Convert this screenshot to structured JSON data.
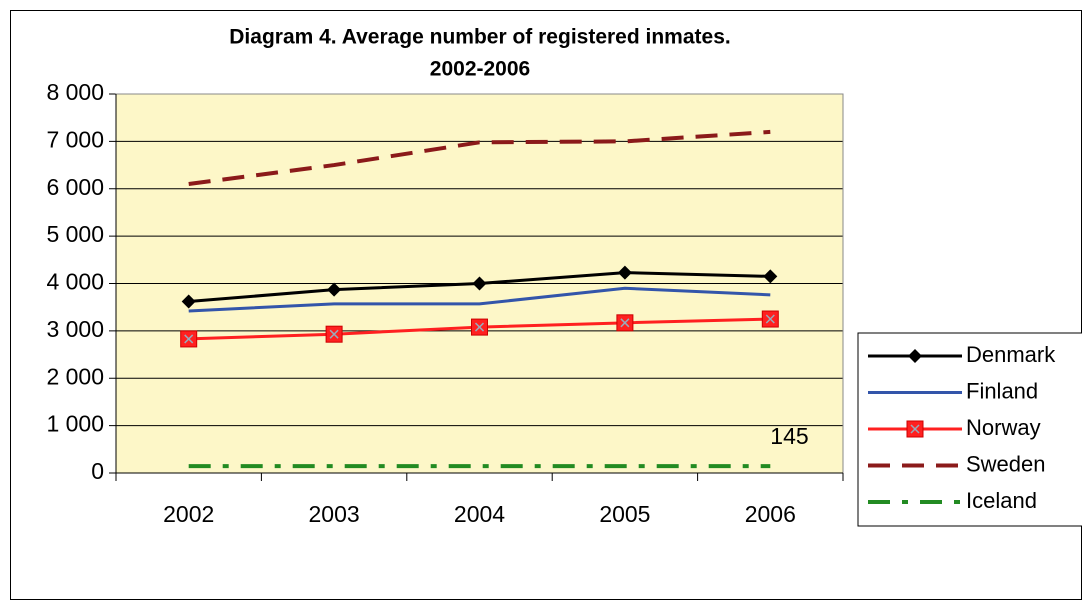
{
  "chart_data": {
    "type": "line",
    "title": [
      "Diagram 4. Average number of registered inmates.",
      "2002-2006"
    ],
    "categories": [
      "2002",
      "2003",
      "2004",
      "2005",
      "2006"
    ],
    "series": [
      {
        "name": "Denmark",
        "color": "#000000",
        "marker": "diamond",
        "dash": "solid",
        "values": [
          3620,
          3870,
          4000,
          4230,
          4150
        ]
      },
      {
        "name": "Finland",
        "color": "#3355aa",
        "marker": "none",
        "dash": "solid",
        "values": [
          3420,
          3570,
          3570,
          3900,
          3760
        ]
      },
      {
        "name": "Norway",
        "color": "#ff2020",
        "marker": "square",
        "dash": "solid",
        "values": [
          2830,
          2930,
          3080,
          3170,
          3250
        ]
      },
      {
        "name": "Sweden",
        "color": "#8b1a1a",
        "marker": "none",
        "dash": "dash",
        "values": [
          6100,
          6500,
          6980,
          7000,
          7200
        ]
      },
      {
        "name": "Iceland",
        "color": "#228b22",
        "marker": "none",
        "dash": "dashdot",
        "values": [
          145,
          145,
          145,
          145,
          145
        ]
      }
    ],
    "ylim": [
      0,
      8000
    ],
    "yticks": [
      0,
      {
        "value": 1000,
        "label": "1 000"
      },
      {
        "value": 2000,
        "label": "2 000"
      },
      {
        "value": 3000,
        "label": "3 000"
      },
      {
        "value": 4000,
        "label": "4 000"
      },
      {
        "value": 5000,
        "label": "5 000"
      },
      {
        "value": 6000,
        "label": "6 000"
      },
      {
        "value": 7000,
        "label": "7 000"
      },
      {
        "value": 8000,
        "label": "8 000"
      }
    ],
    "grid": true,
    "legend": "right",
    "plot_background": "#fdf7c8"
  }
}
